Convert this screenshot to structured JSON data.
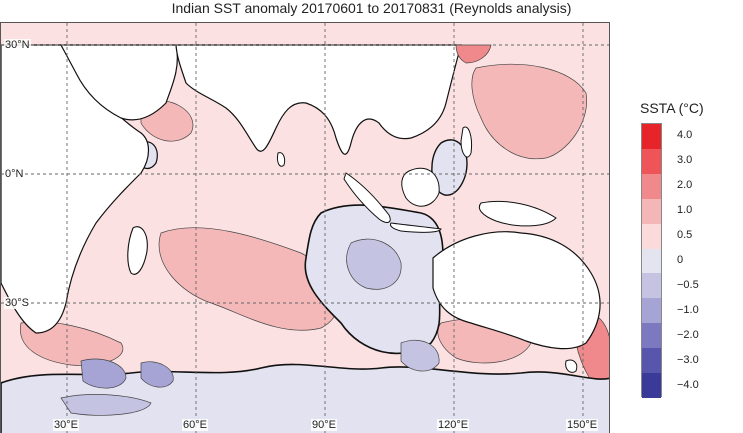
{
  "title": "Indian SST anomaly 20170601 to 20170831 (Reynolds analysis)",
  "map": {
    "region": "Indian Ocean",
    "lat_labels": [
      "30°N",
      "0°N",
      "30°S"
    ],
    "lon_labels": [
      "30°E",
      "60°E",
      "90°E",
      "120°E",
      "150°E"
    ],
    "colors": {
      "land": "#ffffff",
      "coast": "#111111",
      "grid": "#666666",
      "ocean_base": "#fbe3e3"
    }
  },
  "legend": {
    "title": "SSTA (°C)",
    "ticks": [
      "4.0",
      "3.0",
      "2.0",
      "1.0",
      "0.5",
      "0",
      "−0.5",
      "−1.0",
      "−2.0",
      "−3.0",
      "−4.0"
    ],
    "colors": [
      "#e8242b",
      "#ee5458",
      "#f0898b",
      "#f4b6b7",
      "#fadadb",
      "#e4e4f0",
      "#c4c3e1",
      "#a6a4d4",
      "#7d79c0",
      "#5855ad",
      "#3a3a99"
    ]
  }
}
